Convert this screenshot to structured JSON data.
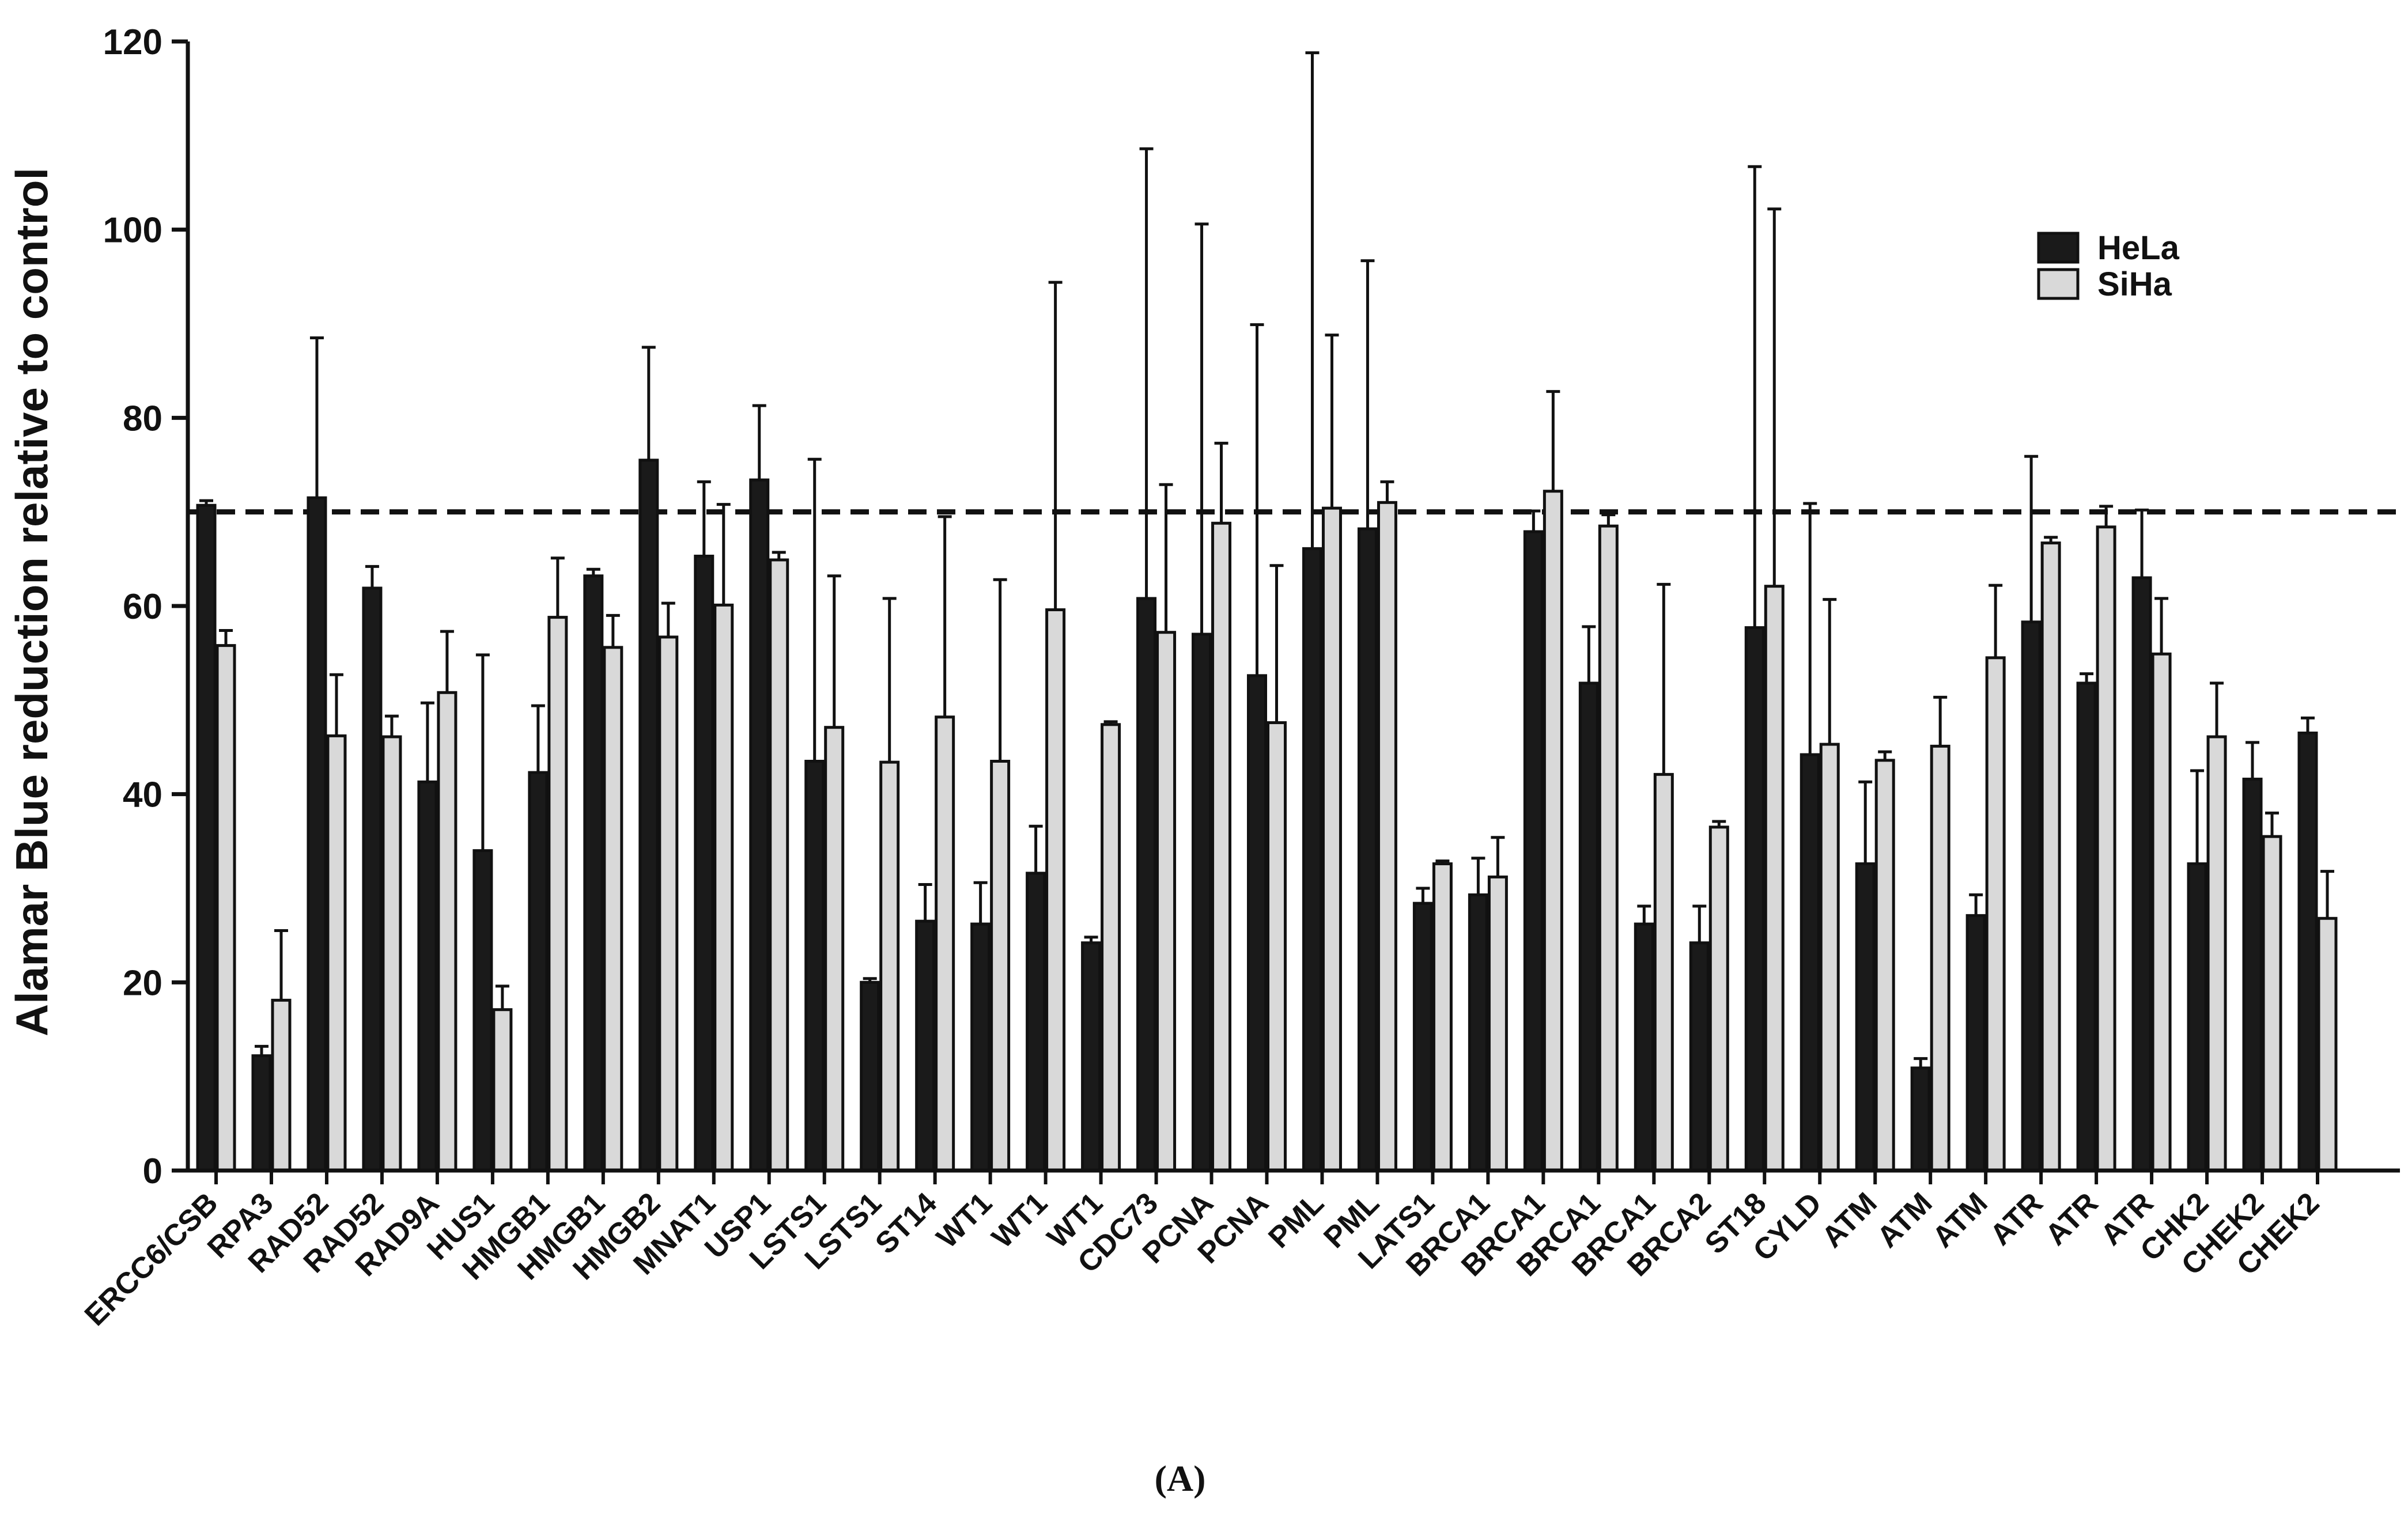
{
  "chart_data": {
    "type": "bar",
    "ylabel": "Alamar Blue reduction relative to control",
    "xlabel": "",
    "ylim": [
      0,
      120
    ],
    "yticks": [
      0,
      20,
      40,
      60,
      80,
      100,
      120
    ],
    "reference_line": 70,
    "legend_position": "top-right",
    "categories": [
      "ERCC6/CSB",
      "RPA3",
      "RAD52",
      "RAD52",
      "RAD9A",
      "HUS1",
      "HMGB1",
      "HMGB1",
      "HMGB2",
      "MNAT1",
      "USP1",
      "LSTS1",
      "LSTS1",
      "ST14",
      "WT1",
      "WT1",
      "WT1",
      "CDC73",
      "PCNA",
      "PCNA",
      "PML",
      "PML",
      "LATS1",
      "BRCA1",
      "BRCA1",
      "BRCA1",
      "BRCA1",
      "BRCA2",
      "ST18",
      "CYLD",
      "ATM",
      "ATM",
      "ATM",
      "ATR",
      "ATR",
      "ATR",
      "CHK2",
      "CHEK2",
      "CHEK2"
    ],
    "series": [
      {
        "name": "HeLa",
        "color": "#1a1a1a",
        "values": [
          70.7,
          12.2,
          71.5,
          61.9,
          41.3,
          34.0,
          42.3,
          63.2,
          75.5,
          65.3,
          73.4,
          43.5,
          20.0,
          26.5,
          26.2,
          31.6,
          24.2,
          60.8,
          57.0,
          52.6,
          66.1,
          68.2,
          28.4,
          29.3,
          67.9,
          51.8,
          26.2,
          24.2,
          57.7,
          44.2,
          32.6,
          10.9,
          27.1,
          58.3,
          51.8,
          63.0,
          32.6,
          41.6,
          46.5
        ],
        "errors": [
          0.5,
          1.0,
          17.0,
          2.3,
          8.4,
          20.8,
          7.1,
          0.7,
          12.0,
          7.9,
          7.9,
          32.1,
          0.4,
          3.9,
          4.4,
          5.0,
          0.6,
          47.8,
          43.6,
          37.3,
          52.7,
          28.5,
          1.6,
          3.9,
          2.2,
          6.0,
          1.9,
          3.9,
          49.0,
          26.7,
          8.7,
          1.0,
          2.2,
          17.6,
          1.0,
          7.2,
          9.9,
          3.9,
          1.6
        ]
      },
      {
        "name": "SiHa",
        "color": "#d9d9d9",
        "values": [
          55.8,
          18.1,
          46.2,
          46.1,
          50.8,
          17.1,
          58.8,
          55.6,
          56.7,
          60.1,
          64.9,
          47.1,
          43.4,
          48.2,
          43.5,
          59.6,
          47.4,
          57.2,
          68.8,
          47.6,
          70.4,
          71.0,
          32.6,
          31.2,
          72.2,
          68.5,
          42.1,
          36.5,
          62.1,
          45.3,
          43.6,
          45.1,
          54.5,
          66.7,
          68.4,
          54.9,
          46.1,
          35.5,
          26.8
        ],
        "errors": [
          1.6,
          7.4,
          6.5,
          2.2,
          6.5,
          2.5,
          6.3,
          3.4,
          3.6,
          10.7,
          0.8,
          16.1,
          17.4,
          21.3,
          19.3,
          34.8,
          0.3,
          15.7,
          8.5,
          16.7,
          18.4,
          2.2,
          0.3,
          4.2,
          10.6,
          1.2,
          20.2,
          0.6,
          40.1,
          15.4,
          0.9,
          5.2,
          7.7,
          0.6,
          2.2,
          5.9,
          5.7,
          2.5,
          5.0
        ]
      }
    ]
  },
  "panel_label": "(A)"
}
